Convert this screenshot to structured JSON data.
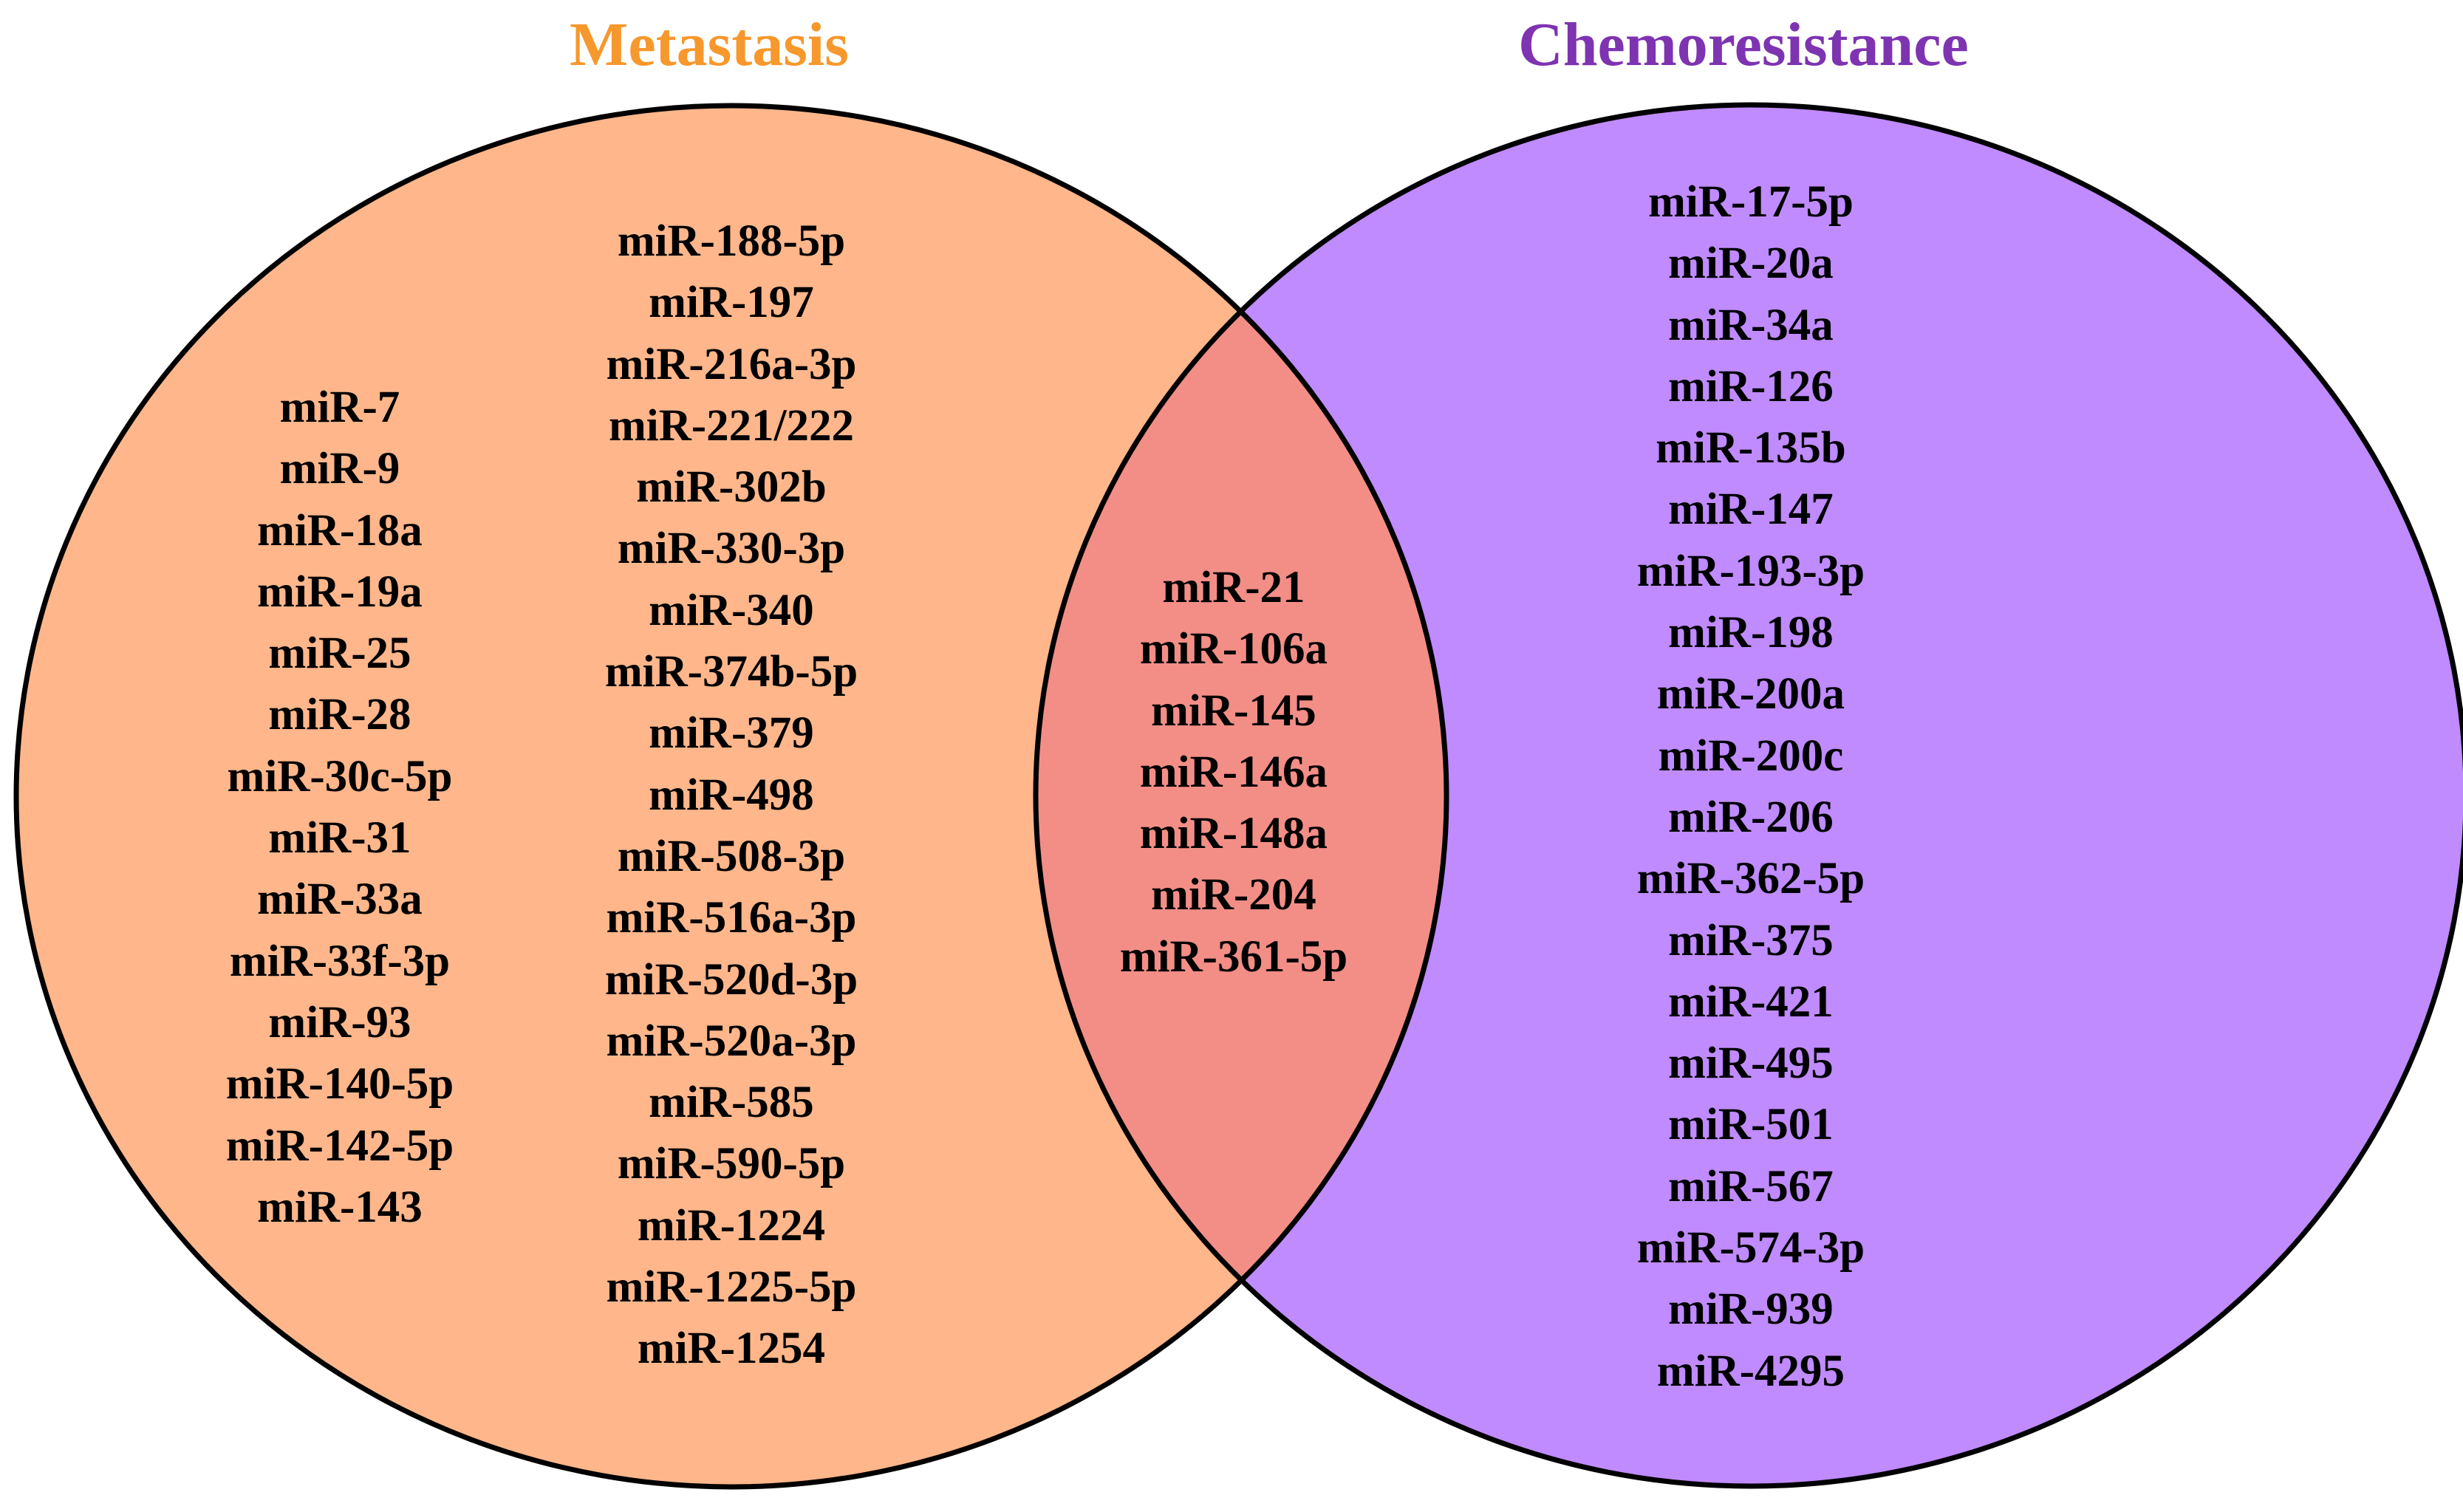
{
  "diagram": {
    "type": "venn",
    "colors": {
      "metastasis_fill": "#FEB68A",
      "chemoresistance_fill": "#BF8BFF",
      "overlap_fill": "#F28E86",
      "outline": "#000000",
      "metastasis_title": "#F7982D",
      "chemoresistance_title": "#7E33B0"
    },
    "sets": {
      "metastasis": {
        "title": "Metastasis"
      },
      "chemoresistance": {
        "title": "Chemoresistance"
      }
    },
    "metastasis_only_col1": [
      "miR-7",
      "miR-9",
      "miR-18a",
      "miR-19a",
      "miR-25",
      "miR-28",
      "miR-30c-5p",
      "miR-31",
      "miR-33a",
      "miR-33f-3p",
      "miR-93",
      "miR-140-5p",
      "miR-142-5p",
      "miR-143"
    ],
    "metastasis_only_col2": [
      "miR-188-5p",
      "miR-197",
      "miR-216a-3p",
      "miR-221/222",
      "miR-302b",
      "miR-330-3p",
      "miR-340",
      "miR-374b-5p",
      "miR-379",
      "miR-498",
      "miR-508-3p",
      "miR-516a-3p",
      "miR-520d-3p",
      "miR-520a-3p",
      "miR-585",
      "miR-590-5p",
      "miR-1224",
      "miR-1225-5p",
      "miR-1254"
    ],
    "shared": [
      "miR-21",
      "miR-106a",
      "miR-145",
      "miR-146a",
      "miR-148a",
      "miR-204",
      "miR-361-5p"
    ],
    "chemoresistance_only": [
      "miR-17-5p",
      "miR-20a",
      "miR-34a",
      "miR-126",
      "miR-135b",
      "miR-147",
      "miR-193-3p",
      "miR-198",
      "miR-200a",
      "miR-200c",
      "miR-206",
      "miR-362-5p",
      "miR-375",
      "miR-421",
      "miR-495",
      "miR-501",
      "miR-567",
      "miR-574-3p",
      "miR-939",
      "miR-4295"
    ]
  }
}
